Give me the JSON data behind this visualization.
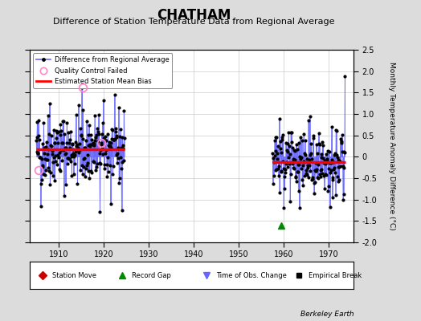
{
  "title": "CHATHAM",
  "subtitle": "Difference of Station Temperature Data from Regional Average",
  "ylabel": "Monthly Temperature Anomaly Difference (°C)",
  "credit": "Berkeley Earth",
  "xlim": [
    1903.5,
    1975.5
  ],
  "ylim": [
    -2.0,
    2.5
  ],
  "yticks": [
    -2.0,
    -1.5,
    -1.0,
    -0.5,
    0.0,
    0.5,
    1.0,
    1.5,
    2.0,
    2.5
  ],
  "xticks": [
    1910,
    1920,
    1930,
    1940,
    1950,
    1960,
    1970
  ],
  "segment1_start": 1905.0,
  "segment1_end": 1924.6,
  "segment1_bias": 0.18,
  "segment2_start": 1957.5,
  "segment2_end": 1973.6,
  "segment2_bias": -0.13,
  "record_gap_x": 1959.5,
  "record_gap_y": -1.6,
  "qc_fail_points": [
    [
      1915.25,
      1.62
    ],
    [
      1919.5,
      0.32
    ],
    [
      1905.5,
      -0.32
    ]
  ],
  "bg_color": "#dcdcdc",
  "plot_bg_color": "#ffffff",
  "line_color": "#6666ff",
  "bias_color": "#ff0000",
  "dot_color": "#000000",
  "qc_color": "#ff88cc",
  "title_fontsize": 12,
  "subtitle_fontsize": 8,
  "tick_fontsize": 7,
  "seed": 42
}
